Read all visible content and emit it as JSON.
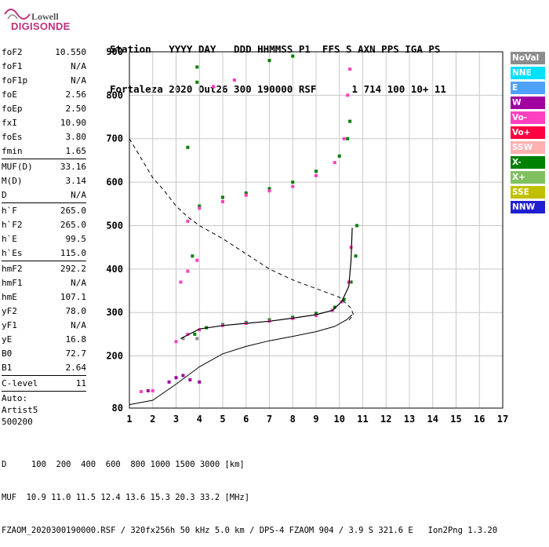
{
  "logo": {
    "line1": "Lowell",
    "line2": "DIGISONDE"
  },
  "header": {
    "line1": "Station   YYYY DAY   DDD HHMMSS P1  FFS S AXN PPS IGA PS",
    "line2": "Fortaleza 2020 Out26 300 190000 RSF      1 714 100 10+ 11"
  },
  "params": {
    "g1": [
      [
        "foF2",
        "10.550"
      ],
      [
        "foF1",
        "N/A"
      ],
      [
        "foF1p",
        "N/A"
      ],
      [
        "foE",
        "2.56"
      ],
      [
        "foEp",
        "2.50"
      ],
      [
        "fxI",
        "10.90"
      ],
      [
        "foEs",
        "3.80"
      ],
      [
        "fmin",
        "1.65"
      ]
    ],
    "g2": [
      [
        "MUF(D)",
        "33.16"
      ],
      [
        "M(D)",
        "3.14"
      ],
      [
        "D",
        "N/A"
      ]
    ],
    "g3": [
      [
        "h`F",
        "265.0"
      ],
      [
        "h`F2",
        "265.0"
      ],
      [
        "h`E",
        "99.5"
      ],
      [
        "h`Es",
        "115.0"
      ]
    ],
    "g4": [
      [
        "hmF2",
        "292.2"
      ],
      [
        "hmF1",
        "N/A"
      ],
      [
        "hmE",
        "107.1"
      ],
      [
        "yF2",
        "78.0"
      ],
      [
        "yF1",
        "N/A"
      ],
      [
        "yE",
        "16.8"
      ],
      [
        "B0",
        "72.7"
      ],
      [
        "B1",
        "2.64"
      ]
    ],
    "g5": [
      [
        "C-level",
        "11"
      ]
    ],
    "auto_lines": [
      "Auto:",
      "Artist5",
      "500200"
    ]
  },
  "legend": [
    {
      "label": "NoVal",
      "color": "#8c8c8c"
    },
    {
      "label": "NNE",
      "color": "#00e0ff"
    },
    {
      "label": "E",
      "color": "#50a0ff"
    },
    {
      "label": "W",
      "color": "#a000a0"
    },
    {
      "label": "Vo-",
      "color": "#ff40c0"
    },
    {
      "label": "Vo+",
      "color": "#ff0040"
    },
    {
      "label": "SSW",
      "color": "#ffb0b0"
    },
    {
      "label": "X-",
      "color": "#008000"
    },
    {
      "label": "X+",
      "color": "#80c060"
    },
    {
      "label": "SSE",
      "color": "#c0c000"
    },
    {
      "label": "NNW",
      "color": "#2020d0"
    }
  ],
  "footer": {
    "line1": "D     100  200  400  600  800 1000 1500 3000 [km]",
    "line2": "MUF  10.9 11.0 11.5 12.4 13.6 15.3 20.3 33.2 [MHz]",
    "line3": "FZAOM_2020300190000.RSF / 320fx256h 50 kHz 5.0 km / DPS-4 FZAOM 904 / 3.9 S 321.6 E   Ion2Png 1.3.20"
  },
  "chart_data": {
    "type": "scatter",
    "xlim": [
      1,
      17
    ],
    "ylim": [
      80,
      900
    ],
    "x_ticks": [
      1,
      2,
      3,
      4,
      5,
      6,
      7,
      8,
      9,
      10,
      11,
      12,
      13,
      14,
      15,
      16,
      17
    ],
    "y_ticks": [
      80,
      200,
      300,
      400,
      500,
      600,
      700,
      800,
      900
    ],
    "grid": true,
    "series": [
      {
        "name": "X-",
        "color": "#008000",
        "points": [
          [
            3.8,
            250
          ],
          [
            4.3,
            265
          ],
          [
            5,
            272
          ],
          [
            6,
            277
          ],
          [
            7,
            283
          ],
          [
            8,
            289
          ],
          [
            9,
            298
          ],
          [
            9.8,
            312
          ],
          [
            10.2,
            330
          ],
          [
            10.5,
            370
          ],
          [
            10.7,
            430
          ],
          [
            10.75,
            500
          ],
          [
            4.0,
            545
          ],
          [
            5,
            565
          ],
          [
            6,
            575
          ],
          [
            7,
            585
          ],
          [
            8,
            600
          ],
          [
            9,
            625
          ],
          [
            10,
            660
          ],
          [
            10.35,
            700
          ],
          [
            10.45,
            740
          ],
          [
            3.9,
            865
          ],
          [
            3.9,
            830
          ],
          [
            7,
            880
          ],
          [
            8,
            890
          ],
          [
            3.5,
            680
          ],
          [
            3.7,
            430
          ]
        ]
      },
      {
        "name": "Vo-",
        "color": "#ff40c0",
        "points": [
          [
            3.0,
            233
          ],
          [
            3.5,
            250
          ],
          [
            4,
            260
          ],
          [
            5,
            270
          ],
          [
            6,
            275
          ],
          [
            7,
            280
          ],
          [
            8,
            286
          ],
          [
            9,
            293
          ],
          [
            9.7,
            305
          ],
          [
            10.1,
            325
          ],
          [
            10.4,
            370
          ],
          [
            10.5,
            450
          ],
          [
            3.5,
            510
          ],
          [
            4,
            540
          ],
          [
            5,
            555
          ],
          [
            6,
            570
          ],
          [
            7,
            580
          ],
          [
            8,
            590
          ],
          [
            9,
            615
          ],
          [
            9.8,
            645
          ],
          [
            10.2,
            700
          ],
          [
            10.35,
            800
          ],
          [
            10.45,
            860
          ],
          [
            4.6,
            820
          ],
          [
            5.5,
            835
          ],
          [
            3.2,
            370
          ],
          [
            3.5,
            395
          ],
          [
            3.9,
            420
          ],
          [
            1.5,
            118
          ],
          [
            2,
            120
          ]
        ]
      },
      {
        "name": "W",
        "color": "#a000a0",
        "points": [
          [
            2.7,
            140
          ],
          [
            3.0,
            150
          ],
          [
            3.3,
            155
          ],
          [
            3.6,
            145
          ],
          [
            4.0,
            140
          ],
          [
            1.8,
            120
          ]
        ]
      },
      {
        "name": "NoVal",
        "color": "#8c8c8c",
        "points": [
          [
            3.3,
            240
          ],
          [
            3.9,
            240
          ]
        ]
      }
    ],
    "curves": [
      {
        "name": "profile",
        "style": "solid",
        "points": [
          [
            1.0,
            88
          ],
          [
            2.0,
            98
          ],
          [
            3.0,
            135
          ],
          [
            4.0,
            175
          ],
          [
            5.0,
            205
          ],
          [
            6.0,
            222
          ],
          [
            7.0,
            235
          ],
          [
            8.0,
            245
          ],
          [
            9.0,
            256
          ],
          [
            9.8,
            268
          ],
          [
            10.3,
            283
          ],
          [
            10.55,
            295
          ]
        ]
      },
      {
        "name": "trace",
        "style": "solid",
        "points": [
          [
            3.2,
            240
          ],
          [
            4,
            262
          ],
          [
            5,
            270
          ],
          [
            6,
            275
          ],
          [
            7,
            280
          ],
          [
            8,
            287
          ],
          [
            9,
            295
          ],
          [
            9.7,
            305
          ],
          [
            10.1,
            325
          ],
          [
            10.4,
            360
          ],
          [
            10.5,
            420
          ],
          [
            10.55,
            495
          ]
        ]
      },
      {
        "name": "muf",
        "style": "dashed",
        "points": [
          [
            1.0,
            700
          ],
          [
            1.5,
            655
          ],
          [
            2.0,
            610
          ],
          [
            2.5,
            580
          ],
          [
            3.0,
            545
          ],
          [
            3.5,
            520
          ],
          [
            4.0,
            500
          ],
          [
            5.0,
            470
          ],
          [
            6.0,
            435
          ],
          [
            7.0,
            400
          ],
          [
            8.0,
            375
          ],
          [
            9.0,
            355
          ],
          [
            10.0,
            335
          ],
          [
            10.5,
            310
          ],
          [
            10.6,
            295
          ],
          [
            10.4,
            282
          ]
        ]
      }
    ]
  }
}
